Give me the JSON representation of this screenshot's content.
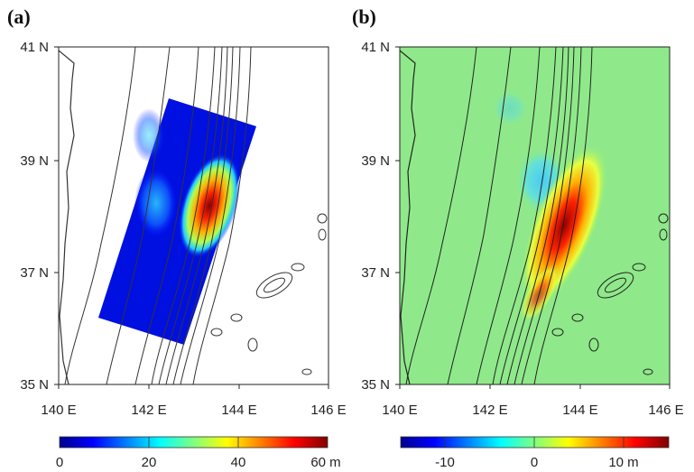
{
  "figure": {
    "panels": [
      {
        "id": "a",
        "label": "(a)",
        "x_ticks": [
          "140 E",
          "142 E",
          "144 E",
          "146 E"
        ],
        "y_ticks": [
          "41 N",
          "39 N",
          "37 N",
          "35 N"
        ],
        "colorbar": {
          "ticks": [
            "0",
            "20",
            "40",
            "60 m"
          ],
          "colors": [
            "#00008f",
            "#0000ff",
            "#00ffff",
            "#ffff00",
            "#ff0000",
            "#800000"
          ]
        }
      },
      {
        "id": "b",
        "label": "(b)",
        "x_ticks": [
          "140 E",
          "142 E",
          "144 E",
          "146 E"
        ],
        "y_ticks": [
          "41 N",
          "39 N",
          "37 N",
          "35 N"
        ],
        "colorbar": {
          "ticks": [
            "-10",
            "0",
            "10 m"
          ],
          "colors": [
            "#00008f",
            "#0000ff",
            "#00ffff",
            "#ffff00",
            "#ff0000",
            "#800000"
          ]
        }
      }
    ]
  }
}
